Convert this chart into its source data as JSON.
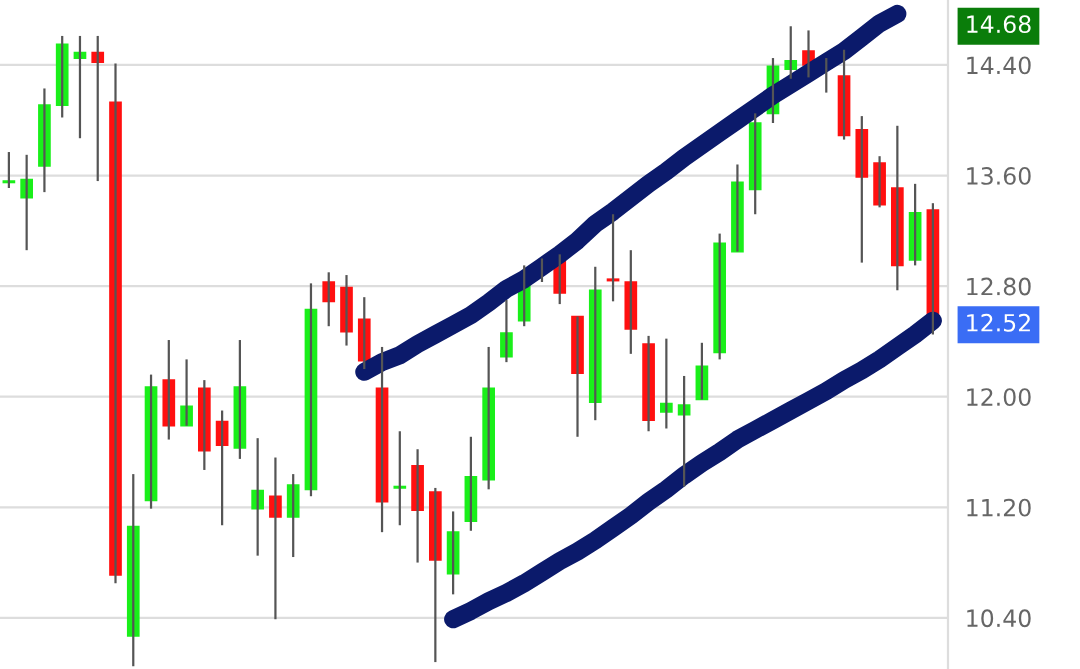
{
  "chart_data": {
    "type": "candlestick",
    "categories": [
      null,
      null,
      null,
      null,
      null,
      null,
      null,
      null,
      null,
      null,
      null,
      null,
      null,
      null,
      null,
      null,
      null,
      null,
      null,
      null,
      null,
      null,
      null,
      null,
      null,
      null,
      null,
      null,
      null,
      null,
      null,
      null,
      null,
      null,
      null,
      null,
      null,
      null,
      null,
      null,
      null,
      null,
      null,
      null,
      null,
      null,
      null,
      null,
      null,
      null,
      null,
      null,
      null
    ],
    "ohlc": [
      [
        13.55,
        13.77,
        13.51,
        13.56
      ],
      [
        13.44,
        13.75,
        13.06,
        13.57
      ],
      [
        13.67,
        14.23,
        13.48,
        14.11
      ],
      [
        14.11,
        14.61,
        14.02,
        14.55
      ],
      [
        14.45,
        14.61,
        13.87,
        14.49
      ],
      [
        14.49,
        14.61,
        13.56,
        14.42
      ],
      [
        14.13,
        14.41,
        10.65,
        10.71
      ],
      [
        10.27,
        11.44,
        10.05,
        11.06
      ],
      [
        11.25,
        12.16,
        11.19,
        12.07
      ],
      [
        12.12,
        12.41,
        11.69,
        11.79
      ],
      [
        11.79,
        12.27,
        11.79,
        11.93
      ],
      [
        12.06,
        12.12,
        11.47,
        11.61
      ],
      [
        11.82,
        11.9,
        11.07,
        11.65
      ],
      [
        11.63,
        12.41,
        11.55,
        12.07
      ],
      [
        11.19,
        11.7,
        10.85,
        11.32
      ],
      [
        11.28,
        11.56,
        10.39,
        11.13
      ],
      [
        11.13,
        11.44,
        10.84,
        11.36
      ],
      [
        11.33,
        12.82,
        11.28,
        12.63
      ],
      [
        12.83,
        12.9,
        12.51,
        12.69
      ],
      [
        12.79,
        12.88,
        12.37,
        12.47
      ],
      [
        12.56,
        12.72,
        12.2,
        12.26
      ],
      [
        12.06,
        12.36,
        11.02,
        11.24
      ],
      [
        11.34,
        11.75,
        11.07,
        11.35
      ],
      [
        11.5,
        11.62,
        10.8,
        11.18
      ],
      [
        11.31,
        11.34,
        10.08,
        10.82
      ],
      [
        10.72,
        11.17,
        10.57,
        11.02
      ],
      [
        11.1,
        11.71,
        11.03,
        11.42
      ],
      [
        11.4,
        12.36,
        11.33,
        12.06
      ],
      [
        12.29,
        12.7,
        12.25,
        12.46
      ],
      [
        12.55,
        12.95,
        12.51,
        12.87
      ],
      [
        12.96,
        13.0,
        12.83,
        12.92
      ],
      [
        13.0,
        13.03,
        12.67,
        12.75
      ],
      [
        12.58,
        12.58,
        11.71,
        12.17
      ],
      [
        11.96,
        12.94,
        11.83,
        12.77
      ],
      [
        12.85,
        13.32,
        12.69,
        12.84
      ],
      [
        12.83,
        13.06,
        12.31,
        12.49
      ],
      [
        12.38,
        12.44,
        11.75,
        11.83
      ],
      [
        11.89,
        12.42,
        11.77,
        11.95
      ],
      [
        11.87,
        12.15,
        11.35,
        11.94
      ],
      [
        11.98,
        12.39,
        11.98,
        12.22
      ],
      [
        12.32,
        13.18,
        12.27,
        13.11
      ],
      [
        13.05,
        13.68,
        13.05,
        13.55
      ],
      [
        13.5,
        14.05,
        13.32,
        13.98
      ],
      [
        14.05,
        14.45,
        13.98,
        14.39
      ],
      [
        14.37,
        14.68,
        14.3,
        14.43
      ],
      [
        14.5,
        14.65,
        14.31,
        14.4
      ],
      [
        14.39,
        14.45,
        14.2,
        14.38
      ],
      [
        14.32,
        14.51,
        13.86,
        13.89
      ],
      [
        13.93,
        14.03,
        12.97,
        13.59
      ],
      [
        13.69,
        13.74,
        13.37,
        13.39
      ],
      [
        13.51,
        13.96,
        12.77,
        12.95
      ],
      [
        12.99,
        13.54,
        12.95,
        13.33
      ],
      [
        13.35,
        13.4,
        12.45,
        12.52
      ]
    ],
    "colors": [
      "#1aef1a",
      "#1aef1a",
      "#1aef1a",
      "#1aef1a",
      "#1aef1a",
      "#ff1010",
      "#ff1010",
      "#1aef1a",
      "#1aef1a",
      "#ff1010",
      "#1aef1a",
      "#ff1010",
      "#ff1010",
      "#1aef1a",
      "#1aef1a",
      "#ff1010",
      "#1aef1a",
      "#1aef1a",
      "#ff1010",
      "#ff1010",
      "#ff1010",
      "#ff1010",
      "#1aef1a",
      "#ff1010",
      "#ff1010",
      "#1aef1a",
      "#1aef1a",
      "#1aef1a",
      "#1aef1a",
      "#1aef1a",
      "#ff1010",
      "#ff1010",
      "#ff1010",
      "#1aef1a",
      "#ff1010",
      "#ff1010",
      "#ff1010",
      "#1aef1a",
      "#1aef1a",
      "#1aef1a",
      "#1aef1a",
      "#1aef1a",
      "#1aef1a",
      "#1aef1a",
      "#1aef1a",
      "#ff1010",
      "#ff1010",
      "#ff1010",
      "#ff1010",
      "#ff1010",
      "#ff1010",
      "#1aef1a",
      "#ff1010"
    ],
    "series": [
      {
        "type": "line",
        "color": "#0b1a6b",
        "values": [
          null,
          null,
          null,
          null,
          null,
          null,
          null,
          null,
          null,
          null,
          null,
          null,
          null,
          null,
          null,
          null,
          null,
          null,
          null,
          null,
          12.18,
          12.25,
          12.3,
          12.38,
          12.45,
          12.52,
          12.59,
          12.68,
          12.78,
          12.85,
          12.94,
          13.03,
          13.13,
          13.25,
          13.34,
          13.44,
          13.54,
          13.63,
          13.73,
          13.82,
          13.91,
          14.0,
          14.09,
          14.18,
          14.26,
          14.34,
          14.42,
          14.5,
          14.6,
          14.7,
          14.77,
          null,
          null
        ]
      },
      {
        "type": "line",
        "color": "#0b1a6b",
        "values": [
          null,
          null,
          null,
          null,
          null,
          null,
          null,
          null,
          null,
          null,
          null,
          null,
          null,
          null,
          null,
          null,
          null,
          null,
          null,
          null,
          null,
          null,
          null,
          null,
          null,
          10.39,
          10.45,
          10.52,
          10.58,
          10.65,
          10.73,
          10.81,
          10.88,
          10.96,
          11.05,
          11.14,
          11.24,
          11.33,
          11.43,
          11.52,
          11.6,
          11.69,
          11.76,
          11.83,
          11.9,
          11.97,
          12.04,
          12.12,
          12.19,
          12.27,
          12.36,
          12.45,
          12.55
        ]
      }
    ],
    "ylim": [
      10.03,
      14.87
    ],
    "yticks": [
      {
        "value": 10.4,
        "label": "10.40"
      },
      {
        "value": 11.2,
        "label": "11.20"
      },
      {
        "value": 12.0,
        "label": "12.00"
      },
      {
        "value": 12.8,
        "label": "12.80"
      },
      {
        "value": 13.6,
        "label": "13.60"
      },
      {
        "value": 14.4,
        "label": "14.40"
      }
    ],
    "annotations": [
      "14.68",
      "12.52"
    ],
    "grid": "y",
    "tick_labels": "y"
  }
}
